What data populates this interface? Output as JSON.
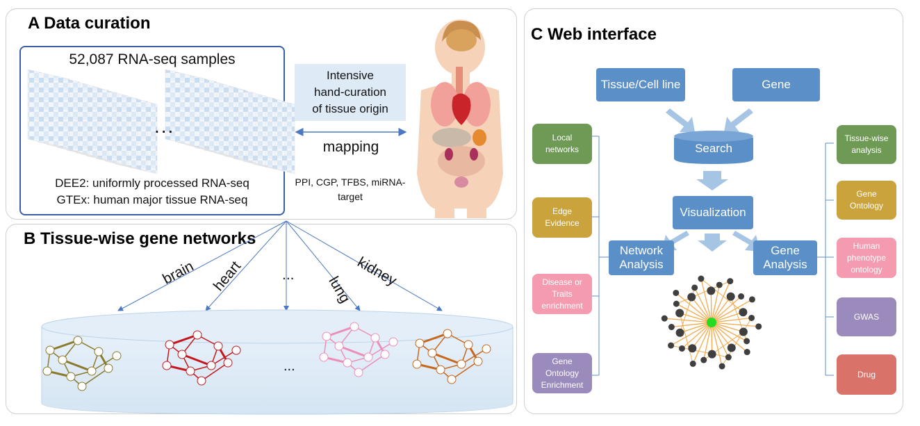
{
  "panel_a": {
    "title": "A Data curation",
    "samples_title": "52,087 RNA-seq samples",
    "ellipsis": "...",
    "dee2_line": "DEE2: uniformly processed RNA-seq",
    "gtex_line": "GTEx: human major tissue RNA-seq",
    "curation_lines": [
      "Intensive",
      "hand-curation",
      "of tissue origin"
    ],
    "mapping_label": "mapping",
    "sources_line1": "PPI, CGP, TFBS, miRNA-",
    "sources_line2": "target"
  },
  "panel_b": {
    "title": "B Tissue-wise gene networks",
    "tissues": [
      "brain",
      "heart",
      "...",
      "lung",
      "kidney"
    ],
    "ellipsis": "...",
    "network_colors": [
      "#8a7a2c",
      "#c4161c",
      "#ec8fb8",
      "#c8661c"
    ]
  },
  "panel_c": {
    "title": "C Web interface",
    "tissue_button": "Tissue/Cell line",
    "gene_button": "Gene",
    "search": "Search",
    "visualization": "Visualization",
    "network_analysis": [
      "Network",
      "Analysis"
    ],
    "gene_analysis": [
      "Gene",
      "Analysis"
    ],
    "left_items": [
      {
        "lines": [
          "Local",
          "networks"
        ],
        "color": "#6f9a56"
      },
      {
        "lines": [
          "Edge",
          "Evidence"
        ],
        "color": "#cba33c"
      },
      {
        "lines": [
          "Disease or",
          "Traits",
          "enrichment"
        ],
        "color": "#f59bb0"
      },
      {
        "lines": [
          "Gene",
          "Ontology",
          "Enrichment"
        ],
        "color": "#9b8bbd"
      }
    ],
    "right_items": [
      {
        "lines": [
          "Tissue-wise",
          "analysis"
        ],
        "color": "#6f9a56"
      },
      {
        "lines": [
          "Gene",
          "Ontology"
        ],
        "color": "#cba33c"
      },
      {
        "lines": [
          "Human",
          "phenotype",
          "ontology"
        ],
        "color": "#f59bb0"
      },
      {
        "lines": [
          "GWAS"
        ],
        "color": "#9b8bbd"
      },
      {
        "lines": [
          "Drug"
        ],
        "color": "#d9736a"
      }
    ],
    "colors": {
      "primary_box": "#5b8fc8",
      "arrow": "#a6c4e4",
      "hub": "#22dd22",
      "node": "#3f3f3f",
      "edge": "#f5a94a"
    }
  }
}
